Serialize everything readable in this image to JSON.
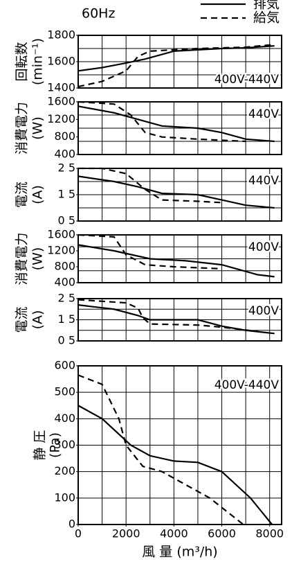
{
  "header": "60Hz",
  "chart_data": [
    {
      "type": "line",
      "y_label": "回転数",
      "y_unit": "(min⁻¹)",
      "annotation": "400V-440V",
      "xlim": [
        0,
        8500
      ],
      "ylim": [
        1400,
        1800
      ],
      "yticks": [
        1400,
        1600,
        1800
      ],
      "ygrid": [
        1400,
        1500,
        1600,
        1700,
        1800
      ],
      "series": [
        {
          "name": "排気",
          "dash": false,
          "x": [
            0,
            1000,
            2000,
            2800,
            4000,
            6000,
            7000,
            8200
          ],
          "values": [
            1530,
            1555,
            1590,
            1620,
            1680,
            1700,
            1705,
            1720
          ]
        },
        {
          "name": "給気",
          "dash": true,
          "x": [
            0,
            1000,
            2000,
            2500,
            3000,
            5000,
            7000,
            8200
          ],
          "values": [
            1410,
            1450,
            1530,
            1640,
            1680,
            1700,
            1710,
            1730
          ]
        }
      ]
    },
    {
      "type": "line",
      "y_label": "消費電力",
      "y_unit": "(W)",
      "annotation": "440V",
      "xlim": [
        0,
        8500
      ],
      "ylim": [
        400,
        1600
      ],
      "yticks": [
        400,
        800,
        1200,
        1600
      ],
      "ygrid": [
        400,
        700,
        1000,
        1300,
        1600
      ],
      "series": [
        {
          "dash": false,
          "x": [
            0,
            1500,
            2500,
            3500,
            5000,
            6000,
            7000,
            8200
          ],
          "values": [
            1500,
            1350,
            1200,
            1050,
            1000,
            900,
            750,
            700
          ]
        },
        {
          "dash": true,
          "x": [
            0,
            1500,
            2200,
            2800,
            3500,
            5000,
            7000
          ],
          "values": [
            1600,
            1550,
            1300,
            900,
            800,
            750,
            700
          ]
        }
      ]
    },
    {
      "type": "line",
      "y_label": "電流",
      "y_unit": "(A)",
      "annotation": "440V",
      "xlim": [
        0,
        8500
      ],
      "ylim": [
        0.5,
        2.5
      ],
      "yticks": [
        {
          "value": 0.5,
          "label": "0 5"
        },
        {
          "value": 1.5,
          "label": "1 5"
        },
        {
          "value": 2.5,
          "label": "2 5"
        }
      ],
      "ygrid": [
        0.5,
        1,
        1.5,
        2,
        2.5
      ],
      "series": [
        {
          "dash": false,
          "x": [
            0,
            1500,
            2500,
            3500,
            5000,
            6000,
            7000,
            8200
          ],
          "values": [
            2.2,
            2.0,
            1.8,
            1.55,
            1.5,
            1.3,
            1.1,
            1.0
          ]
        },
        {
          "dash": true,
          "x": [
            0,
            1000,
            2000,
            2800,
            3500,
            5000,
            6000
          ],
          "values": [
            2.5,
            2.5,
            2.3,
            1.7,
            1.3,
            1.25,
            1.2
          ]
        }
      ]
    },
    {
      "type": "line",
      "y_label": "消費電力",
      "y_unit": "(W)",
      "annotation": "400V",
      "xlim": [
        0,
        8500
      ],
      "ylim": [
        400,
        1600
      ],
      "yticks": [
        400,
        800,
        1200,
        1600
      ],
      "ygrid": [
        400,
        700,
        1000,
        1300,
        1600
      ],
      "series": [
        {
          "dash": false,
          "x": [
            0,
            1500,
            3000,
            4500,
            6000,
            7500,
            8200
          ],
          "values": [
            1350,
            1200,
            1000,
            950,
            850,
            600,
            550
          ]
        },
        {
          "dash": true,
          "x": [
            0,
            1500,
            2000,
            2800,
            4000,
            6000
          ],
          "values": [
            1600,
            1550,
            1100,
            850,
            800,
            750
          ]
        }
      ]
    },
    {
      "type": "line",
      "y_label": "電流",
      "y_unit": "(A)",
      "annotation": "400V",
      "xlim": [
        0,
        8500
      ],
      "ylim": [
        0.5,
        2.5
      ],
      "yticks": [
        {
          "value": 0.5,
          "label": "0 5"
        },
        {
          "value": 1.5,
          "label": "1 5"
        },
        {
          "value": 2.5,
          "label": "2 5"
        }
      ],
      "ygrid": [
        0.5,
        1,
        1.5,
        2,
        2.5
      ],
      "series": [
        {
          "dash": false,
          "x": [
            0,
            1500,
            2500,
            3000,
            5000,
            6000,
            7000,
            8200
          ],
          "values": [
            2.2,
            2.0,
            1.7,
            1.5,
            1.5,
            1.2,
            1.0,
            0.85
          ]
        },
        {
          "dash": true,
          "x": [
            0,
            2000,
            2500,
            2700,
            3000,
            5000,
            6000,
            7500
          ],
          "values": [
            2.45,
            2.3,
            2.05,
            1.6,
            1.3,
            1.25,
            1.15,
            0.95
          ]
        }
      ]
    },
    {
      "type": "line",
      "y_label": "静 圧",
      "y_unit": "(Pa)",
      "annotation": "400V-440V",
      "x_label": "風 量 (m³/h)",
      "xlim": [
        0,
        8500
      ],
      "xticks": [
        0,
        2000,
        4000,
        6000,
        8000
      ],
      "xgrid": [
        0,
        1000,
        2000,
        3000,
        4000,
        5000,
        6000,
        7000,
        8000
      ],
      "ylim": [
        0,
        600
      ],
      "yticks": [
        0,
        100,
        200,
        300,
        400,
        500,
        600
      ],
      "ygrid": [
        0,
        100,
        200,
        300,
        400,
        500,
        600
      ],
      "series": [
        {
          "dash": false,
          "x": [
            0,
            1000,
            2200,
            3000,
            4000,
            5000,
            6000,
            7200,
            8100
          ],
          "values": [
            450,
            400,
            300,
            260,
            240,
            235,
            200,
            100,
            0
          ]
        },
        {
          "dash": true,
          "x": [
            0,
            1000,
            1700,
            2000,
            2700,
            3500,
            4500,
            5500,
            6900
          ],
          "values": [
            565,
            530,
            400,
            300,
            220,
            200,
            150,
            100,
            0
          ]
        }
      ]
    }
  ]
}
